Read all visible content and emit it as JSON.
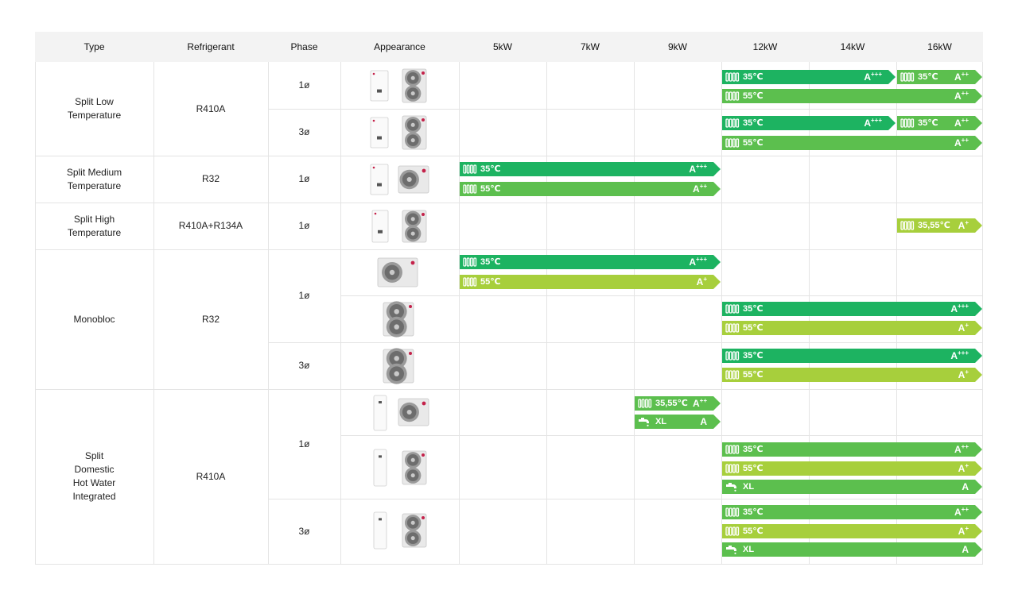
{
  "header": {
    "type": "Type",
    "refrigerant": "Refrigerant",
    "phase": "Phase",
    "appearance": "Appearance",
    "capacities": [
      "5kW",
      "7kW",
      "9kW",
      "12kW",
      "14kW",
      "16kW"
    ]
  },
  "groups": [
    {
      "type_lines": [
        "Split Low",
        "Temperature"
      ],
      "refrigerant": "R410A"
    },
    {
      "type_lines": [
        "Split Medium",
        "Temperature"
      ],
      "refrigerant": "R32"
    },
    {
      "type_lines": [
        "Split High",
        "Temperature"
      ],
      "refrigerant": "R410A+R134A"
    },
    {
      "type_lines": [
        "Monobloc"
      ],
      "refrigerant": "R32"
    },
    {
      "type_lines": [
        "Split",
        "Domestic",
        "Hot Water",
        "Integrated"
      ],
      "refrigerant": "R410A"
    }
  ],
  "phases": {
    "single": "1ø",
    "three": "3ø"
  },
  "bar_colors": {
    "dark_green": "#1db361",
    "mid_green": "#5cbf4e",
    "light_green": "#a7cf3c"
  },
  "rows": [
    {
      "bars": [
        {
          "icon": "radiator-icon",
          "label": "35℃",
          "rating": "A",
          "sup": "+++",
          "color": "dark_green",
          "span": [
            3,
            4
          ]
        },
        {
          "icon": "radiator-icon",
          "label": "35℃",
          "rating": "A",
          "sup": "++",
          "color": "mid_green",
          "span": [
            5,
            5
          ]
        },
        {
          "icon": "radiator-icon",
          "label": "55℃",
          "rating": "A",
          "sup": "++",
          "color": "mid_green",
          "span": [
            3,
            5
          ]
        }
      ]
    },
    {
      "bars": [
        {
          "icon": "radiator-icon",
          "label": "35℃",
          "rating": "A",
          "sup": "+++",
          "color": "dark_green",
          "span": [
            3,
            4
          ]
        },
        {
          "icon": "radiator-icon",
          "label": "35℃",
          "rating": "A",
          "sup": "++",
          "color": "mid_green",
          "span": [
            5,
            5
          ]
        },
        {
          "icon": "radiator-icon",
          "label": "55℃",
          "rating": "A",
          "sup": "++",
          "color": "mid_green",
          "span": [
            3,
            5
          ]
        }
      ]
    },
    {
      "bars": [
        {
          "icon": "radiator-icon",
          "label": "35℃",
          "rating": "A",
          "sup": "+++",
          "color": "dark_green",
          "span": [
            0,
            2
          ]
        },
        {
          "icon": "radiator-icon",
          "label": "55℃",
          "rating": "A",
          "sup": "++",
          "color": "mid_green",
          "span": [
            0,
            2
          ]
        }
      ]
    },
    {
      "bars": [
        {
          "icon": "radiator-icon",
          "label": "35,55℃",
          "rating": "A",
          "sup": "+",
          "color": "light_green",
          "span": [
            5,
            5
          ]
        }
      ]
    },
    {
      "bars": [
        {
          "icon": "radiator-icon",
          "label": "35℃",
          "rating": "A",
          "sup": "+++",
          "color": "dark_green",
          "span": [
            0,
            2
          ]
        },
        {
          "icon": "radiator-icon",
          "label": "55℃",
          "rating": "A",
          "sup": "+",
          "color": "light_green",
          "span": [
            0,
            2
          ]
        }
      ]
    },
    {
      "bars": [
        {
          "icon": "radiator-icon",
          "label": "35℃",
          "rating": "A",
          "sup": "+++",
          "color": "dark_green",
          "span": [
            3,
            5
          ]
        },
        {
          "icon": "radiator-icon",
          "label": "55℃",
          "rating": "A",
          "sup": "+",
          "color": "light_green",
          "span": [
            3,
            5
          ]
        }
      ]
    },
    {
      "bars": [
        {
          "icon": "radiator-icon",
          "label": "35℃",
          "rating": "A",
          "sup": "+++",
          "color": "dark_green",
          "span": [
            3,
            5
          ]
        },
        {
          "icon": "radiator-icon",
          "label": "55℃",
          "rating": "A",
          "sup": "+",
          "color": "light_green",
          "span": [
            3,
            5
          ]
        }
      ]
    },
    {
      "bars": [
        {
          "icon": "radiator-icon",
          "label": "35,55℃",
          "rating": "A",
          "sup": "++",
          "color": "mid_green",
          "span": [
            2,
            2
          ]
        },
        {
          "icon": "faucet-icon",
          "label": "XL",
          "rating": "A",
          "sup": "",
          "color": "mid_green",
          "span": [
            2,
            2
          ]
        }
      ]
    },
    {
      "bars": [
        {
          "icon": "radiator-icon",
          "label": "35℃",
          "rating": "A",
          "sup": "++",
          "color": "mid_green",
          "span": [
            3,
            5
          ]
        },
        {
          "icon": "radiator-icon",
          "label": "55℃",
          "rating": "A",
          "sup": "+",
          "color": "light_green",
          "span": [
            3,
            5
          ]
        },
        {
          "icon": "faucet-icon",
          "label": "XL",
          "rating": "A",
          "sup": "",
          "color": "mid_green",
          "span": [
            3,
            5
          ]
        }
      ]
    },
    {
      "bars": [
        {
          "icon": "radiator-icon",
          "label": "35℃",
          "rating": "A",
          "sup": "++",
          "color": "mid_green",
          "span": [
            3,
            5
          ]
        },
        {
          "icon": "radiator-icon",
          "label": "55℃",
          "rating": "A",
          "sup": "+",
          "color": "light_green",
          "span": [
            3,
            5
          ]
        },
        {
          "icon": "faucet-icon",
          "label": "XL",
          "rating": "A",
          "sup": "",
          "color": "mid_green",
          "span": [
            3,
            5
          ]
        }
      ]
    }
  ],
  "appearance_icons": [
    "split-indoor-outdoor-unit-icon",
    "split-indoor-outdoor-unit-icon",
    "split-indoor-wide-outdoor-unit-icon",
    "split-tall-indoor-outdoor-unit-icon",
    "monobloc-wide-unit-icon",
    "monobloc-tall-unit-icon",
    "monobloc-tall-unit-icon",
    "tank-wide-outdoor-unit-icon",
    "tank-tall-outdoor-unit-icon",
    "tank-tall-outdoor-unit-icon"
  ]
}
